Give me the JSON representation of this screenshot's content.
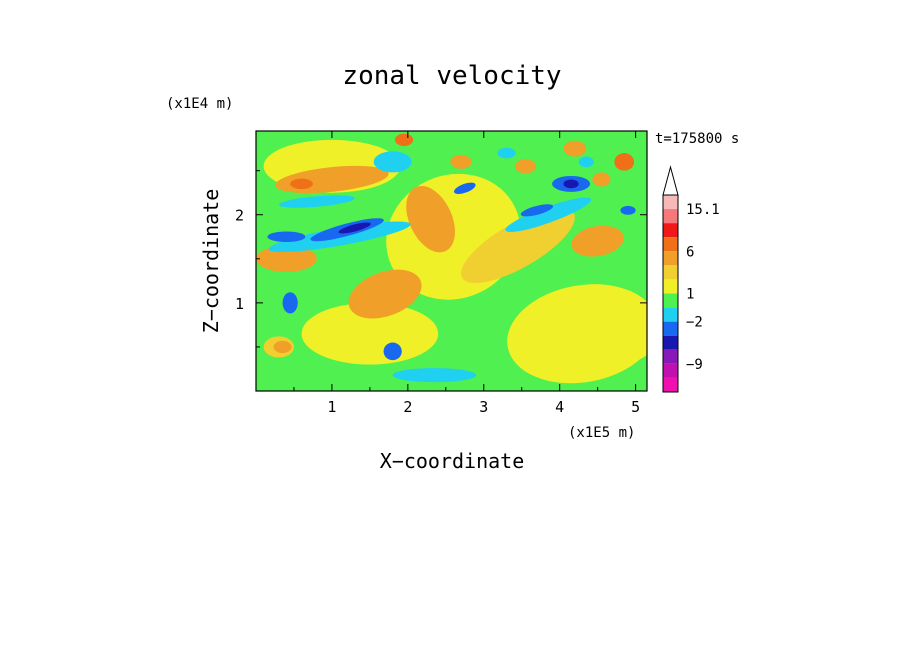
{
  "chart_data": {
    "type": "heatmap",
    "title": "zonal velocity",
    "xlabel": "X−coordinate",
    "ylabel": "Z−coordinate",
    "x_unit": "(x1E5 m)",
    "y_unit": "(x1E4 m)",
    "xlim": [
      0,
      5.15
    ],
    "ylim": [
      0,
      2.95
    ],
    "x_ticks": [
      1,
      2,
      3,
      4,
      5
    ],
    "y_ticks": [
      1,
      2
    ],
    "x_tick_labels": [
      "1",
      "2",
      "3",
      "4",
      "5"
    ],
    "y_tick_labels": [
      "1",
      "2"
    ],
    "timestamp": "t=175800 s",
    "grid": false,
    "colorbar": {
      "levels_top_to_bottom": [
        {
          "color": "#f7b8b8"
        },
        {
          "color": "#f77878"
        },
        {
          "color": "#f01818"
        },
        {
          "color": "#f07018"
        },
        {
          "color": "#f0a028"
        },
        {
          "color": "#f0d030"
        },
        {
          "color": "#f0f028"
        },
        {
          "color": "#50f050"
        },
        {
          "color": "#20d0f0"
        },
        {
          "color": "#1868f0"
        },
        {
          "color": "#1818b0"
        },
        {
          "color": "#8818b8"
        },
        {
          "color": "#c010b0"
        },
        {
          "color": "#f010b0"
        }
      ],
      "labels": [
        {
          "text": "15.1",
          "level": 0
        },
        {
          "text": "6",
          "level": 3
        },
        {
          "text": "1",
          "level": 6
        },
        {
          "text": "−2",
          "level": 8
        },
        {
          "text": "−9",
          "level": 11
        }
      ]
    },
    "background_color": "#50f050",
    "features": [
      {
        "color": "#f0f028",
        "cx": 2.6,
        "cy": 1.75,
        "rx": 0.9,
        "ry": 0.7,
        "rot": -25
      },
      {
        "color": "#f0f028",
        "cx": 4.3,
        "cy": 0.65,
        "rx": 1.0,
        "ry": 0.55,
        "rot": -10
      },
      {
        "color": "#f0f028",
        "cx": 1.5,
        "cy": 0.65,
        "rx": 0.9,
        "ry": 0.35,
        "rot": 0
      },
      {
        "color": "#f0f028",
        "cx": 1.0,
        "cy": 2.55,
        "rx": 0.9,
        "ry": 0.3,
        "rot": 0
      },
      {
        "color": "#f0d030",
        "cx": 3.45,
        "cy": 1.65,
        "rx": 0.85,
        "ry": 0.25,
        "rot": -30
      },
      {
        "color": "#f0a028",
        "cx": 4.5,
        "cy": 1.7,
        "rx": 0.35,
        "ry": 0.17,
        "rot": -10
      },
      {
        "color": "#f0a028",
        "cx": 1.7,
        "cy": 1.1,
        "rx": 0.5,
        "ry": 0.25,
        "rot": -20
      },
      {
        "color": "#f0a028",
        "cx": 1.0,
        "cy": 2.4,
        "rx": 0.75,
        "ry": 0.14,
        "rot": -6
      },
      {
        "color": "#f0a028",
        "cx": 0.4,
        "cy": 1.5,
        "rx": 0.4,
        "ry": 0.15,
        "rot": 0
      },
      {
        "color": "#f0a028",
        "cx": 2.3,
        "cy": 1.95,
        "rx": 0.28,
        "ry": 0.4,
        "rot": -25
      },
      {
        "color": "#f0d030",
        "cx": 0.3,
        "cy": 0.5,
        "rx": 0.2,
        "ry": 0.12,
        "rot": 0
      },
      {
        "color": "#f0a028",
        "cx": 0.35,
        "cy": 0.5,
        "rx": 0.12,
        "ry": 0.07,
        "rot": 0
      },
      {
        "color": "#f0f028",
        "cx": 4.7,
        "cy": 0.5,
        "rx": 0.5,
        "ry": 0.2,
        "rot": 0
      },
      {
        "color": "#20d0f0",
        "cx": 1.1,
        "cy": 1.75,
        "rx": 0.95,
        "ry": 0.1,
        "rot": -10
      },
      {
        "color": "#20d0f0",
        "cx": 3.85,
        "cy": 2.0,
        "rx": 0.6,
        "ry": 0.09,
        "rot": -20
      },
      {
        "color": "#20d0f0",
        "cx": 0.8,
        "cy": 2.15,
        "rx": 0.5,
        "ry": 0.06,
        "rot": -5
      },
      {
        "color": "#20d0f0",
        "cx": 2.35,
        "cy": 0.18,
        "rx": 0.55,
        "ry": 0.08,
        "rot": 0
      },
      {
        "color": "#20d0f0",
        "cx": 1.8,
        "cy": 2.6,
        "rx": 0.25,
        "ry": 0.12,
        "rot": 0
      },
      {
        "color": "#1868f0",
        "cx": 1.2,
        "cy": 1.83,
        "rx": 0.5,
        "ry": 0.07,
        "rot": -15
      },
      {
        "color": "#1868f0",
        "cx": 0.4,
        "cy": 1.75,
        "rx": 0.25,
        "ry": 0.06,
        "rot": 0
      },
      {
        "color": "#1868f0",
        "cx": 4.15,
        "cy": 2.35,
        "rx": 0.25,
        "ry": 0.09,
        "rot": 0
      },
      {
        "color": "#1868f0",
        "cx": 3.7,
        "cy": 2.05,
        "rx": 0.22,
        "ry": 0.05,
        "rot": -15
      },
      {
        "color": "#1868f0",
        "cx": 1.8,
        "cy": 0.45,
        "rx": 0.12,
        "ry": 0.1,
        "rot": 0
      },
      {
        "color": "#1868f0",
        "cx": 0.45,
        "cy": 1.0,
        "rx": 0.1,
        "ry": 0.12,
        "rot": 0
      },
      {
        "color": "#1868f0",
        "cx": 2.75,
        "cy": 2.3,
        "rx": 0.15,
        "ry": 0.05,
        "rot": -20
      },
      {
        "color": "#1818b0",
        "cx": 4.15,
        "cy": 2.35,
        "rx": 0.1,
        "ry": 0.05,
        "rot": 0
      },
      {
        "color": "#1818b0",
        "cx": 1.3,
        "cy": 1.85,
        "rx": 0.22,
        "ry": 0.04,
        "rot": -15
      },
      {
        "color": "#f07018",
        "cx": 4.85,
        "cy": 2.6,
        "rx": 0.13,
        "ry": 0.1,
        "rot": 0
      },
      {
        "color": "#f07018",
        "cx": 0.6,
        "cy": 2.35,
        "rx": 0.15,
        "ry": 0.06,
        "rot": 0
      },
      {
        "color": "#f07018",
        "cx": 1.95,
        "cy": 2.85,
        "rx": 0.12,
        "ry": 0.07,
        "rot": 0
      },
      {
        "color": "#f0a028",
        "cx": 4.2,
        "cy": 2.75,
        "rx": 0.15,
        "ry": 0.09,
        "rot": 0
      },
      {
        "color": "#f0a028",
        "cx": 4.55,
        "cy": 2.4,
        "rx": 0.12,
        "ry": 0.08,
        "rot": 0
      },
      {
        "color": "#f0a028",
        "cx": 3.55,
        "cy": 2.55,
        "rx": 0.14,
        "ry": 0.08,
        "rot": 0
      },
      {
        "color": "#f0a028",
        "cx": 2.7,
        "cy": 2.6,
        "rx": 0.14,
        "ry": 0.08,
        "rot": 0
      },
      {
        "color": "#20d0f0",
        "cx": 4.35,
        "cy": 2.6,
        "rx": 0.1,
        "ry": 0.06,
        "rot": 0
      },
      {
        "color": "#20d0f0",
        "cx": 3.3,
        "cy": 2.7,
        "rx": 0.12,
        "ry": 0.06,
        "rot": 0
      },
      {
        "color": "#1868f0",
        "cx": 4.9,
        "cy": 2.05,
        "rx": 0.1,
        "ry": 0.05,
        "rot": 0
      }
    ]
  }
}
